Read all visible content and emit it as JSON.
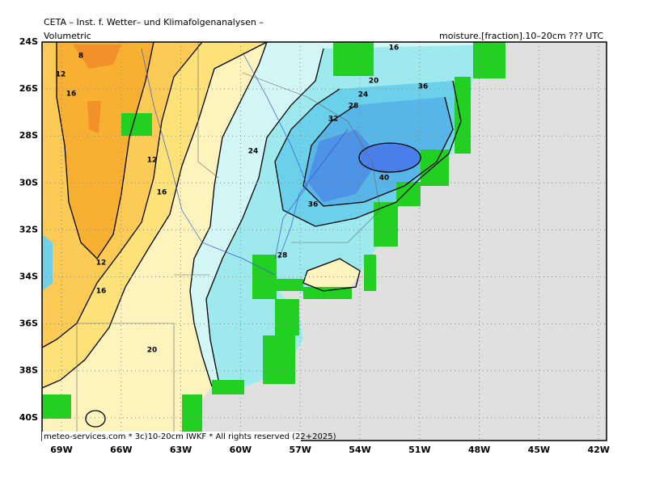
{
  "header": {
    "title": "CETA – Inst. f. Wetter– und Klimafolgenanalysen –",
    "left": "Volumetric",
    "right": "moisture.[fraction].10–20cm ??? UTC"
  },
  "map": {
    "lat_labels": [
      "24S",
      "26S",
      "28S",
      "30S",
      "32S",
      "34S",
      "36S",
      "38S",
      "40S"
    ],
    "lon_labels": [
      "69W",
      "66W",
      "63W",
      "60W",
      "57W",
      "54W",
      "51W",
      "48W",
      "45W",
      "42W"
    ],
    "contour_labels": [
      8,
      12,
      16,
      12,
      16,
      12,
      16,
      20,
      24,
      28,
      32,
      36,
      40,
      36,
      24,
      20,
      28,
      16
    ]
  },
  "footer": "meteo-services.com * 3c)10-20cm IWKF * All rights reserved (22+2025)"
}
